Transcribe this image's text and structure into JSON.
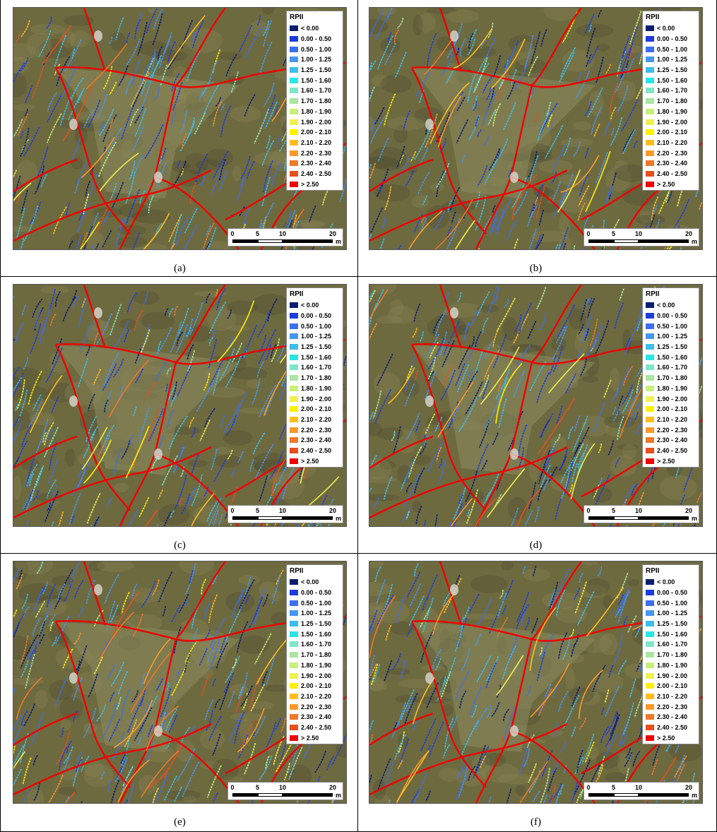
{
  "panels": [
    {
      "id": "a",
      "caption": "(a)"
    },
    {
      "id": "b",
      "caption": "(b)"
    },
    {
      "id": "c",
      "caption": "(c)"
    },
    {
      "id": "d",
      "caption": "(d)"
    },
    {
      "id": "e",
      "caption": "(e)"
    },
    {
      "id": "f",
      "caption": "(f)"
    }
  ],
  "legend": {
    "title": "RPII",
    "classes": [
      {
        "label": "< 0.00",
        "color": "#0a1e6e"
      },
      {
        "label": "0.00 - 0.50",
        "color": "#1e3cdc"
      },
      {
        "label": "0.50 - 1.00",
        "color": "#3c6ef0"
      },
      {
        "label": "1.00 - 1.25",
        "color": "#4696f0"
      },
      {
        "label": "1.25 - 1.50",
        "color": "#3cbeea"
      },
      {
        "label": "1.50 - 1.60",
        "color": "#28e6e6"
      },
      {
        "label": "1.60 - 1.70",
        "color": "#7ee6c8"
      },
      {
        "label": "1.70 - 1.80",
        "color": "#aae6a0"
      },
      {
        "label": "1.80 - 1.90",
        "color": "#c8f078"
      },
      {
        "label": "1.90 - 2.00",
        "color": "#f0f050"
      },
      {
        "label": "2.00 - 2.10",
        "color": "#fff000"
      },
      {
        "label": "2.10 - 2.20",
        "color": "#ffbe1e"
      },
      {
        "label": "2.20 - 2.30",
        "color": "#ff9a28"
      },
      {
        "label": "2.30 - 2.40",
        "color": "#f07828"
      },
      {
        "label": "2.40 - 2.50",
        "color": "#e6501e"
      },
      {
        "label": "> 2.50",
        "color": "#f00000"
      }
    ]
  },
  "scalebar": {
    "ticks": [
      "0",
      "5",
      "10",
      "20"
    ],
    "tick_values_m": [
      0,
      5,
      10,
      20
    ],
    "unit": "m"
  },
  "colors": {
    "terrain": "#6e6a40",
    "terrain_light": "#8a8456",
    "terrain_dark": "#4c4a30"
  }
}
